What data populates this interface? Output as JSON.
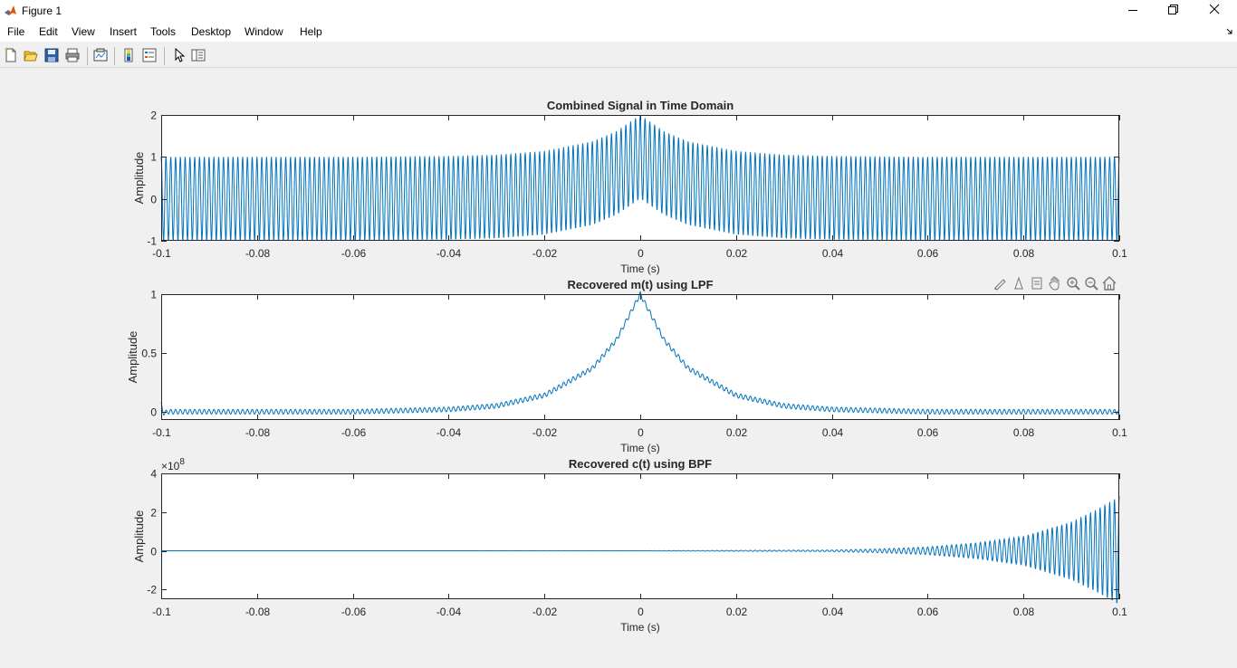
{
  "window": {
    "title": "Figure 1"
  },
  "menubar": {
    "items": [
      "File",
      "Edit",
      "View",
      "Insert",
      "Tools",
      "Desktop",
      "Window",
      "Help"
    ]
  },
  "toolbar": {
    "icons": [
      "new-figure-icon",
      "open-file-icon",
      "save-icon",
      "print-icon",
      "link-plot-icon",
      "insert-colorbar-icon",
      "insert-legend-icon",
      "edit-plot-icon",
      "property-inspector-icon"
    ]
  },
  "axes_toolbar": {
    "icons": [
      "brush-icon",
      "data-tips-icon",
      "rotate-icon",
      "pan-icon",
      "zoom-in-icon",
      "zoom-out-icon",
      "home-icon"
    ]
  },
  "colors": {
    "line": "#0072bd",
    "axes_bg": "#ffffff",
    "figure_bg": "#f0f0f0"
  },
  "chart_data": [
    {
      "type": "line",
      "title": "Combined Signal in Time Domain",
      "xlabel": "Time (s)",
      "ylabel": "Amplitude",
      "xlim": [
        -0.1,
        0.1
      ],
      "ylim": [
        -1,
        2
      ],
      "xticks": [
        "-0.1",
        "-0.08",
        "-0.06",
        "-0.04",
        "-0.02",
        "0",
        "0.02",
        "0.04",
        "0.06",
        "0.08",
        "0.1"
      ],
      "yticks": [
        "-1",
        "0",
        "1",
        "2"
      ],
      "exponent": "",
      "series": [
        {
          "description": "carrier cos(2*pi*1000*t) plus m(t)=exp(-100|t|)",
          "x": [
            -0.1,
            -0.08,
            -0.06,
            -0.04,
            -0.03,
            -0.02,
            -0.01,
            -0.005,
            0,
            0.005,
            0.01,
            0.02,
            0.03,
            0.04,
            0.06,
            0.08,
            0.1
          ],
          "upper_envelope": [
            1.0,
            1.0,
            1.0,
            1.02,
            1.05,
            1.14,
            1.37,
            1.61,
            2.0,
            1.61,
            1.37,
            1.14,
            1.05,
            1.02,
            1.0,
            1.0,
            1.0
          ],
          "lower_envelope": [
            -1.0,
            -1.0,
            -1.0,
            -0.98,
            -0.95,
            -0.86,
            -0.63,
            -0.39,
            0.0,
            -0.39,
            -0.63,
            -0.86,
            -0.95,
            -0.98,
            -1.0,
            -1.0,
            -1.0
          ]
        }
      ]
    },
    {
      "type": "line",
      "title": "Recovered m(t) using LPF",
      "xlabel": "Time (s)",
      "ylabel": "Amplitude",
      "xlim": [
        -0.1,
        0.1
      ],
      "ylim": [
        -0.07,
        1.0
      ],
      "xticks": [
        "-0.1",
        "-0.08",
        "-0.06",
        "-0.04",
        "-0.02",
        "0",
        "0.02",
        "0.04",
        "0.06",
        "0.08",
        "0.1"
      ],
      "yticks": [
        "0",
        "0.5",
        "1"
      ],
      "exponent": "",
      "series": [
        {
          "description": "exp(-100|t|) with small residual ripple",
          "x": [
            -0.1,
            -0.08,
            -0.06,
            -0.04,
            -0.03,
            -0.02,
            -0.01,
            -0.005,
            0,
            0.005,
            0.01,
            0.02,
            0.03,
            0.04,
            0.06,
            0.08,
            0.1
          ],
          "y": [
            0.0,
            0.0,
            0.0,
            0.02,
            0.05,
            0.14,
            0.37,
            0.61,
            1.0,
            0.61,
            0.37,
            0.14,
            0.05,
            0.02,
            0.0,
            0.0,
            0.0
          ],
          "ripple_amplitude": 0.02
        }
      ]
    },
    {
      "type": "line",
      "title": "Recovered c(t) using BPF",
      "xlabel": "Time (s)",
      "ylabel": "Amplitude",
      "xlim": [
        -0.1,
        0.1
      ],
      "ylim": [
        -2.5,
        4
      ],
      "xticks": [
        "-0.1",
        "-0.08",
        "-0.06",
        "-0.04",
        "-0.02",
        "0",
        "0.02",
        "0.04",
        "0.06",
        "0.08",
        "0.1"
      ],
      "yticks": [
        "-2",
        "0",
        "2",
        "4"
      ],
      "exponent": "×10^8",
      "exponent_base": "×10",
      "exponent_power": "8",
      "series": [
        {
          "description": "oscillation with exponentially growing envelope, in units of 1e8",
          "x": [
            -0.1,
            -0.05,
            0,
            0.04,
            0.05,
            0.06,
            0.07,
            0.08,
            0.09,
            0.095,
            0.1
          ],
          "envelope": [
            0,
            0,
            0.005,
            0.04,
            0.1,
            0.2,
            0.4,
            0.75,
            1.5,
            2.1,
            2.8
          ]
        }
      ]
    }
  ]
}
